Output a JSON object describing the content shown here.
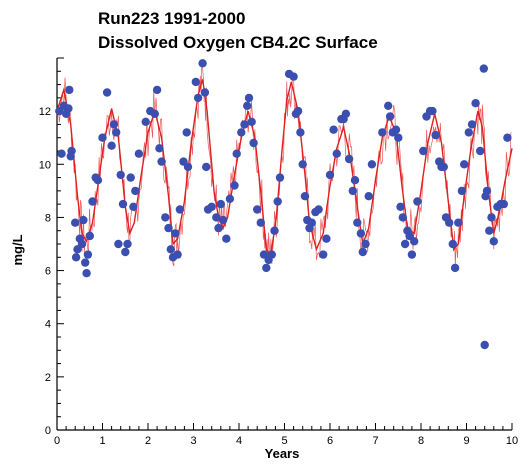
{
  "chart_data": {
    "type": "scatter",
    "title": "Run223 1991-2000",
    "subtitle": "Dissolved Oxygen CB4.2C Surface",
    "xlabel": "Years",
    "ylabel": "mg/L",
    "xlim": [
      0,
      10
    ],
    "ylim": [
      0,
      14
    ],
    "x_ticks": [
      "0",
      "1",
      "2",
      "3",
      "4",
      "5",
      "6",
      "7",
      "8",
      "9",
      "10"
    ],
    "y_ticks": [
      "0",
      "2",
      "4",
      "6",
      "8",
      "10",
      "12"
    ],
    "grid": false,
    "legend": "none",
    "colors": {
      "observed": "#3a4fb0",
      "model": "#e02020"
    },
    "series": [
      {
        "kind": "points",
        "values": [
          [
            0.05,
            12.0
          ],
          [
            0.1,
            10.4
          ],
          [
            0.15,
            12.2
          ],
          [
            0.2,
            11.9
          ],
          [
            0.25,
            12.1
          ],
          [
            0.27,
            12.8
          ],
          [
            0.3,
            10.3
          ],
          [
            0.32,
            10.5
          ],
          [
            0.4,
            7.8
          ],
          [
            0.42,
            6.5
          ],
          [
            0.45,
            6.8
          ],
          [
            0.5,
            7.2
          ],
          [
            0.55,
            7.0
          ],
          [
            0.58,
            7.9
          ],
          [
            0.62,
            6.3
          ],
          [
            0.65,
            5.9
          ],
          [
            0.68,
            6.6
          ],
          [
            0.72,
            7.3
          ],
          [
            0.78,
            8.6
          ],
          [
            0.85,
            9.5
          ],
          [
            0.9,
            9.4
          ],
          [
            1.0,
            11.0
          ],
          [
            1.1,
            12.7
          ],
          [
            1.2,
            10.7
          ],
          [
            1.25,
            11.5
          ],
          [
            1.3,
            11.2
          ],
          [
            1.35,
            7.0
          ],
          [
            1.4,
            9.6
          ],
          [
            1.45,
            8.5
          ],
          [
            1.5,
            6.7
          ],
          [
            1.55,
            7.0
          ],
          [
            1.62,
            9.5
          ],
          [
            1.68,
            8.4
          ],
          [
            1.72,
            9.0
          ],
          [
            1.8,
            10.4
          ],
          [
            1.95,
            11.6
          ],
          [
            2.05,
            12.0
          ],
          [
            2.15,
            11.9
          ],
          [
            2.2,
            12.8
          ],
          [
            2.25,
            10.6
          ],
          [
            2.3,
            10.1
          ],
          [
            2.38,
            8.0
          ],
          [
            2.45,
            7.6
          ],
          [
            2.5,
            6.8
          ],
          [
            2.55,
            6.5
          ],
          [
            2.6,
            7.4
          ],
          [
            2.65,
            6.6
          ],
          [
            2.7,
            8.3
          ],
          [
            2.78,
            10.1
          ],
          [
            2.85,
            11.2
          ],
          [
            2.88,
            9.9
          ],
          [
            3.05,
            13.1
          ],
          [
            3.1,
            12.5
          ],
          [
            3.2,
            13.8
          ],
          [
            3.25,
            12.7
          ],
          [
            3.28,
            9.9
          ],
          [
            3.32,
            8.3
          ],
          [
            3.4,
            8.4
          ],
          [
            3.5,
            8.0
          ],
          [
            3.55,
            7.6
          ],
          [
            3.6,
            8.5
          ],
          [
            3.65,
            7.9
          ],
          [
            3.72,
            7.2
          ],
          [
            3.8,
            8.7
          ],
          [
            3.9,
            9.2
          ],
          [
            3.95,
            10.4
          ],
          [
            4.05,
            11.2
          ],
          [
            4.12,
            11.5
          ],
          [
            4.18,
            12.2
          ],
          [
            4.22,
            12.5
          ],
          [
            4.28,
            11.6
          ],
          [
            4.32,
            10.8
          ],
          [
            4.4,
            8.3
          ],
          [
            4.48,
            7.8
          ],
          [
            4.55,
            6.6
          ],
          [
            4.6,
            6.1
          ],
          [
            4.65,
            6.4
          ],
          [
            4.72,
            6.6
          ],
          [
            4.78,
            7.5
          ],
          [
            4.85,
            8.6
          ],
          [
            4.9,
            9.5
          ],
          [
            5.1,
            13.4
          ],
          [
            5.2,
            13.3
          ],
          [
            5.25,
            11.9
          ],
          [
            5.3,
            12.0
          ],
          [
            5.35,
            11.2
          ],
          [
            5.4,
            10.0
          ],
          [
            5.45,
            8.8
          ],
          [
            5.5,
            7.9
          ],
          [
            5.55,
            7.6
          ],
          [
            5.6,
            7.8
          ],
          [
            5.68,
            8.2
          ],
          [
            5.75,
            8.3
          ],
          [
            5.85,
            6.6
          ],
          [
            5.92,
            7.2
          ],
          [
            6.0,
            9.6
          ],
          [
            6.08,
            11.3
          ],
          [
            6.15,
            10.4
          ],
          [
            6.25,
            11.7
          ],
          [
            6.3,
            11.7
          ],
          [
            6.35,
            11.9
          ],
          [
            6.42,
            10.2
          ],
          [
            6.5,
            9.0
          ],
          [
            6.55,
            9.4
          ],
          [
            6.6,
            7.8
          ],
          [
            6.68,
            7.4
          ],
          [
            6.72,
            6.7
          ],
          [
            6.78,
            7.0
          ],
          [
            6.85,
            8.8
          ],
          [
            6.92,
            10.0
          ],
          [
            7.15,
            11.2
          ],
          [
            7.28,
            12.2
          ],
          [
            7.32,
            11.8
          ],
          [
            7.38,
            11.2
          ],
          [
            7.45,
            11.3
          ],
          [
            7.5,
            11.0
          ],
          [
            7.55,
            8.4
          ],
          [
            7.6,
            8.0
          ],
          [
            7.65,
            7.0
          ],
          [
            7.7,
            7.5
          ],
          [
            7.75,
            7.3
          ],
          [
            7.8,
            6.6
          ],
          [
            7.85,
            7.1
          ],
          [
            7.92,
            8.6
          ],
          [
            8.05,
            10.5
          ],
          [
            8.12,
            11.8
          ],
          [
            8.2,
            12.0
          ],
          [
            8.25,
            12.0
          ],
          [
            8.32,
            11.1
          ],
          [
            8.4,
            10.1
          ],
          [
            8.45,
            9.9
          ],
          [
            8.5,
            9.9
          ],
          [
            8.55,
            8.0
          ],
          [
            8.62,
            7.8
          ],
          [
            8.7,
            7.0
          ],
          [
            8.75,
            6.1
          ],
          [
            8.82,
            7.8
          ],
          [
            8.9,
            9.0
          ],
          [
            8.95,
            10.0
          ],
          [
            9.05,
            11.2
          ],
          [
            9.12,
            11.5
          ],
          [
            9.2,
            12.3
          ],
          [
            9.3,
            10.5
          ],
          [
            9.38,
            13.6
          ],
          [
            9.42,
            8.8
          ],
          [
            9.45,
            9.0
          ],
          [
            9.5,
            7.5
          ],
          [
            9.55,
            8.0
          ],
          [
            9.6,
            7.1
          ],
          [
            9.68,
            8.4
          ],
          [
            9.75,
            8.5
          ],
          [
            9.82,
            8.5
          ],
          [
            9.9,
            11.0
          ],
          [
            9.4,
            3.2
          ]
        ]
      },
      {
        "kind": "line",
        "values": [
          [
            0.0,
            12.0
          ],
          [
            0.15,
            12.8
          ],
          [
            0.3,
            11.5
          ],
          [
            0.45,
            8.8
          ],
          [
            0.55,
            7.4
          ],
          [
            0.65,
            7.1
          ],
          [
            0.78,
            7.8
          ],
          [
            0.9,
            9.2
          ],
          [
            1.05,
            11.0
          ],
          [
            1.2,
            12.1
          ],
          [
            1.35,
            11.0
          ],
          [
            1.5,
            8.4
          ],
          [
            1.6,
            7.4
          ],
          [
            1.7,
            7.8
          ],
          [
            1.85,
            9.6
          ],
          [
            2.0,
            11.2
          ],
          [
            2.15,
            12.0
          ],
          [
            2.3,
            11.0
          ],
          [
            2.45,
            8.8
          ],
          [
            2.55,
            7.0
          ],
          [
            2.65,
            7.2
          ],
          [
            2.8,
            8.6
          ],
          [
            2.95,
            10.8
          ],
          [
            3.1,
            12.6
          ],
          [
            3.2,
            13.2
          ],
          [
            3.3,
            12.0
          ],
          [
            3.45,
            9.0
          ],
          [
            3.55,
            8.0
          ],
          [
            3.65,
            7.6
          ],
          [
            3.75,
            8.0
          ],
          [
            3.9,
            9.6
          ],
          [
            4.05,
            11.0
          ],
          [
            4.2,
            12.0
          ],
          [
            4.35,
            11.0
          ],
          [
            4.5,
            8.6
          ],
          [
            4.6,
            6.8
          ],
          [
            4.7,
            6.6
          ],
          [
            4.82,
            8.0
          ],
          [
            4.95,
            10.6
          ],
          [
            5.05,
            12.4
          ],
          [
            5.15,
            13.1
          ],
          [
            5.3,
            12.0
          ],
          [
            5.45,
            9.6
          ],
          [
            5.55,
            7.8
          ],
          [
            5.7,
            6.8
          ],
          [
            5.85,
            7.4
          ],
          [
            6.0,
            9.2
          ],
          [
            6.15,
            10.6
          ],
          [
            6.3,
            11.4
          ],
          [
            6.45,
            10.2
          ],
          [
            6.6,
            8.4
          ],
          [
            6.72,
            7.0
          ],
          [
            6.85,
            7.6
          ],
          [
            7.0,
            9.4
          ],
          [
            7.15,
            11.0
          ],
          [
            7.3,
            11.8
          ],
          [
            7.45,
            11.2
          ],
          [
            7.58,
            9.2
          ],
          [
            7.7,
            7.6
          ],
          [
            7.85,
            7.4
          ],
          [
            8.0,
            9.0
          ],
          [
            8.15,
            10.8
          ],
          [
            8.3,
            11.9
          ],
          [
            8.45,
            10.8
          ],
          [
            8.6,
            8.6
          ],
          [
            8.72,
            6.8
          ],
          [
            8.82,
            7.0
          ],
          [
            8.95,
            8.8
          ],
          [
            9.1,
            10.6
          ],
          [
            9.25,
            12.0
          ],
          [
            9.35,
            11.4
          ],
          [
            9.48,
            9.0
          ],
          [
            9.6,
            7.4
          ],
          [
            9.72,
            8.2
          ],
          [
            9.85,
            9.4
          ],
          [
            10.0,
            10.6
          ]
        ]
      }
    ]
  }
}
